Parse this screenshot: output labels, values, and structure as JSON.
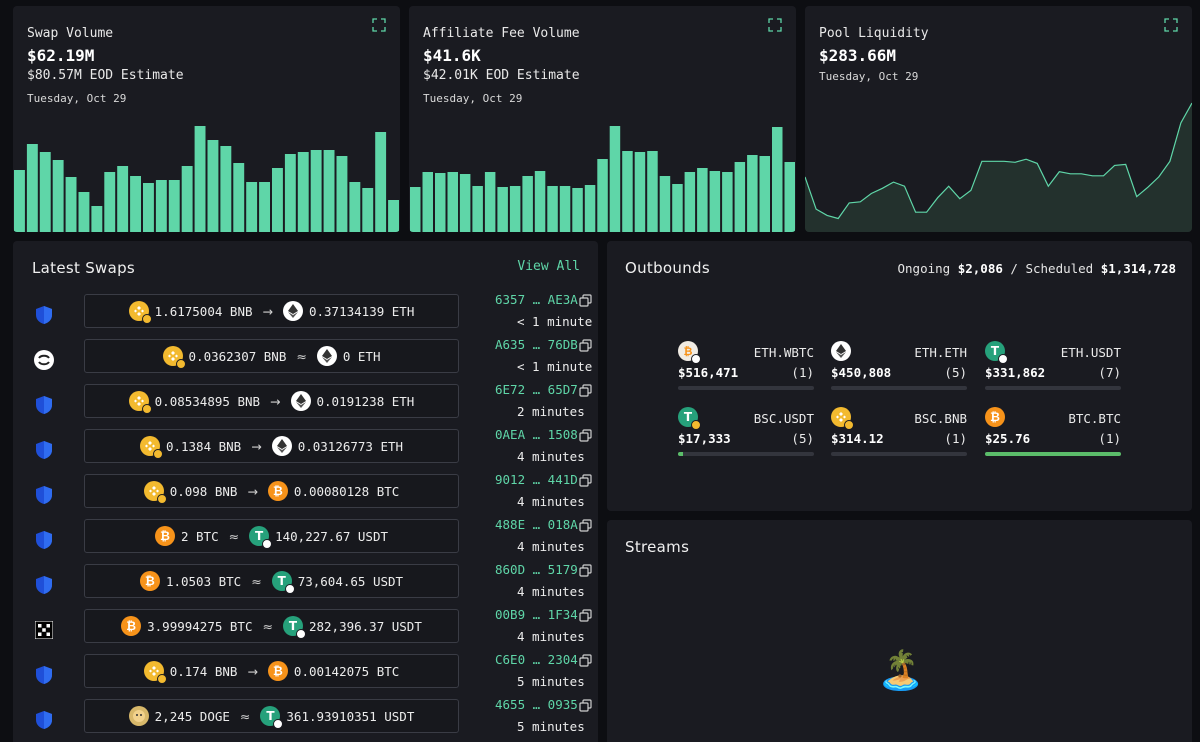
{
  "colors": {
    "accent": "#5fd6a8",
    "bar": "#5fd6a8",
    "background": "#0d0e12",
    "card": "#1a1b21"
  },
  "swap_volume": {
    "title": "Swap Volume",
    "value": "$62.19M",
    "estimate": "$80.57M EOD Estimate",
    "date": "Tuesday, Oct 29"
  },
  "affiliate_fee": {
    "title": "Affiliate Fee Volume",
    "value": "$41.6K",
    "estimate": "$42.01K EOD Estimate",
    "date": "Tuesday, Oct 29"
  },
  "pool_liquidity": {
    "title": "Pool Liquidity",
    "value": "$283.66M",
    "date": "Tuesday, Oct 29"
  },
  "chart_data": [
    {
      "type": "bar",
      "title": "Swap Volume",
      "ylim": [
        0,
        110
      ],
      "values": [
        62,
        88,
        80,
        72,
        55,
        40,
        26,
        60,
        66,
        56,
        49,
        52,
        52,
        66,
        106,
        92,
        86,
        69,
        50,
        50,
        64,
        78,
        80,
        82,
        82,
        76,
        50,
        44,
        100,
        32
      ]
    },
    {
      "type": "bar",
      "title": "Affiliate Fee Volume",
      "ylim": [
        0,
        110
      ],
      "values": [
        45,
        60,
        59,
        60,
        58,
        46,
        60,
        45,
        46,
        56,
        61,
        46,
        46,
        44,
        47,
        73,
        106,
        81,
        80,
        81,
        56,
        48,
        60,
        64,
        61,
        60,
        70,
        77,
        76,
        105,
        70
      ]
    },
    {
      "type": "area",
      "title": "Pool Liquidity",
      "ylim": [
        0,
        125
      ],
      "values": [
        53,
        22,
        16,
        13,
        28,
        29,
        37,
        42,
        48,
        44,
        19,
        19,
        33,
        44,
        32,
        40,
        68,
        68,
        68,
        67,
        70,
        66,
        44,
        58,
        56,
        56,
        54,
        54,
        64,
        65,
        34,
        43,
        53,
        68,
        105,
        124
      ]
    }
  ],
  "latest_swaps": {
    "title": "Latest Swaps",
    "view_all": "View All",
    "rows": [
      {
        "provider": "thorchain",
        "from_icon": "bnb",
        "from": "1.6175004 BNB",
        "op": "→",
        "to_icon": "eth",
        "to": "0.37134139 ETH",
        "txid": "6357 … AE3A",
        "ago": "< 1 minute"
      },
      {
        "provider": "shapeshift",
        "from_icon": "bnb",
        "from": "0.0362307 BNB",
        "op": "≈",
        "to_icon": "eth",
        "to": "0 ETH",
        "txid": "A635 … 76DB",
        "ago": "< 1 minute"
      },
      {
        "provider": "thorchain",
        "from_icon": "bnb",
        "from": "0.08534895 BNB",
        "op": "→",
        "to_icon": "eth",
        "to": "0.0191238 ETH",
        "txid": "6E72 … 65D7",
        "ago": "2 minutes"
      },
      {
        "provider": "thorchain",
        "from_icon": "bnb",
        "from": "0.1384 BNB",
        "op": "→",
        "to_icon": "eth",
        "to": "0.03126773 ETH",
        "txid": "0AEA … 1508",
        "ago": "4 minutes"
      },
      {
        "provider": "thorchain",
        "from_icon": "bnb",
        "from": "0.098 BNB",
        "op": "→",
        "to_icon": "btc",
        "to": "0.00080128 BTC",
        "txid": "9012 … 441D",
        "ago": "4 minutes"
      },
      {
        "provider": "thorchain",
        "from_icon": "btc",
        "from": "2 BTC",
        "op": "≈",
        "to_icon": "usdt",
        "to": "140,227.67 USDT",
        "txid": "488E … 018A",
        "ago": "4 minutes"
      },
      {
        "provider": "thorchain",
        "from_icon": "btc",
        "from": "1.0503 BTC",
        "op": "≈",
        "to_icon": "usdt",
        "to": "73,604.65 USDT",
        "txid": "860D … 5179",
        "ago": "4 minutes"
      },
      {
        "provider": "okx",
        "from_icon": "btc",
        "from": "3.99994275 BTC",
        "op": "≈",
        "to_icon": "usdt",
        "to": "282,396.37 USDT",
        "txid": "00B9 … 1F34",
        "ago": "4 minutes"
      },
      {
        "provider": "thorchain",
        "from_icon": "bnb",
        "from": "0.174 BNB",
        "op": "→",
        "to_icon": "btc",
        "to": "0.00142075 BTC",
        "txid": "C6E0 … 2304",
        "ago": "5 minutes"
      },
      {
        "provider": "thorchain",
        "from_icon": "doge",
        "from": "2,245 DOGE",
        "op": "≈",
        "to_icon": "usdt",
        "to": "361.93910351 USDT",
        "txid": "4655 … 0935",
        "ago": "5 minutes"
      }
    ]
  },
  "outbounds": {
    "title": "Outbounds",
    "ongoing_label": "Ongoing",
    "ongoing_value": "$2,086",
    "separator": "/",
    "scheduled_label": "Scheduled",
    "scheduled_value": "$1,314,728",
    "items": [
      {
        "icon": "wbtc",
        "name": "ETH.WBTC",
        "amount": "$516,471",
        "count": "(1)",
        "progress": 0
      },
      {
        "icon": "eth",
        "name": "ETH.ETH",
        "amount": "$450,808",
        "count": "(5)",
        "progress": 0
      },
      {
        "icon": "usdt",
        "name": "ETH.USDT",
        "amount": "$331,862",
        "count": "(7)",
        "progress": 0
      },
      {
        "icon": "usdt-bsc",
        "name": "BSC.USDT",
        "amount": "$17,333",
        "count": "(5)",
        "progress": 0.04
      },
      {
        "icon": "bnb",
        "name": "BSC.BNB",
        "amount": "$314.12",
        "count": "(1)",
        "progress": 0
      },
      {
        "icon": "btc",
        "name": "BTC.BTC",
        "amount": "$25.76",
        "count": "(1)",
        "progress": 1
      }
    ]
  },
  "streams": {
    "title": "Streams",
    "empty_icon": "🏝️"
  }
}
